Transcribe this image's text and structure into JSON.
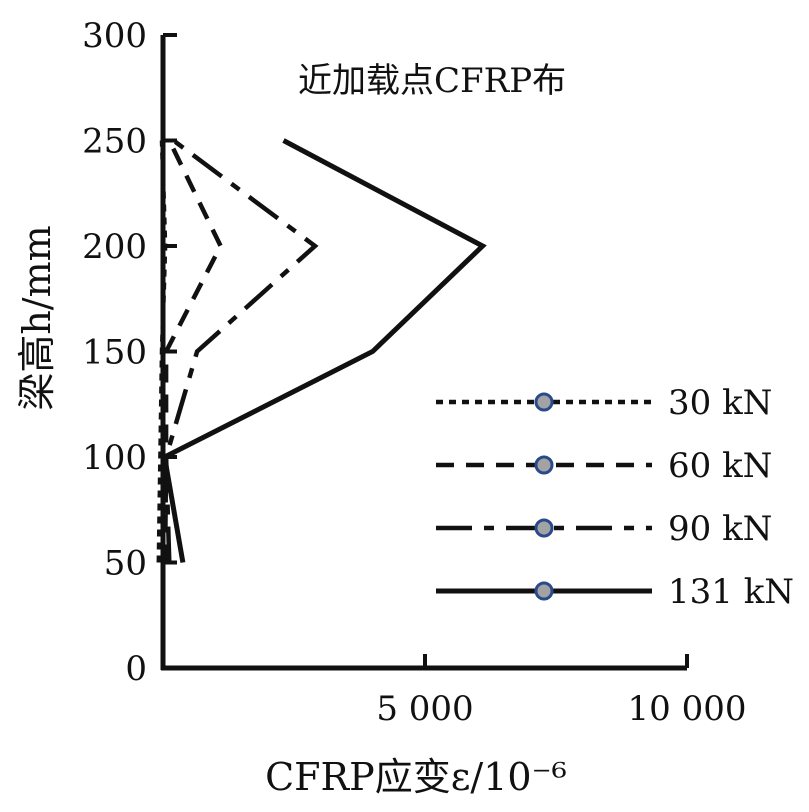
{
  "chart_data": {
    "type": "line",
    "title": "近加载点CFRP布",
    "xlabel": "CFRP应变ε/10⁻⁶",
    "ylabel": "梁高h/mm",
    "xlim": [
      0,
      10000
    ],
    "ylim": [
      0,
      300
    ],
    "x_ticks": [
      0,
      5000,
      10000
    ],
    "x_tick_labels": [
      "",
      "5 000",
      "10 000"
    ],
    "y_ticks": [
      0,
      50,
      100,
      150,
      200,
      250,
      300
    ],
    "y_tick_labels": [
      "0",
      "50",
      "100",
      "150",
      "200",
      "250",
      "300"
    ],
    "grid": false,
    "legend_position": "right",
    "series": [
      {
        "name": "30 kN",
        "style": "dotted",
        "points": [
          [
            -80,
            50
          ],
          [
            -50,
            100
          ],
          [
            -20,
            150
          ],
          [
            40,
            200
          ],
          [
            -20,
            250
          ]
        ]
      },
      {
        "name": "60 kN",
        "style": "dashed",
        "points": [
          [
            40,
            50
          ],
          [
            60,
            100
          ],
          [
            60,
            150
          ],
          [
            1100,
            200
          ],
          [
            120,
            250
          ]
        ]
      },
      {
        "name": "90 kN",
        "style": "dash-dot",
        "points": [
          [
            120,
            50
          ],
          [
            60,
            100
          ],
          [
            650,
            150
          ],
          [
            2900,
            200
          ],
          [
            200,
            250
          ]
        ]
      },
      {
        "name": "131 kN",
        "style": "solid",
        "points": [
          [
            380,
            50
          ],
          [
            30,
            100
          ],
          [
            4000,
            150
          ],
          [
            6100,
            200
          ],
          [
            2300,
            250
          ]
        ]
      }
    ]
  }
}
